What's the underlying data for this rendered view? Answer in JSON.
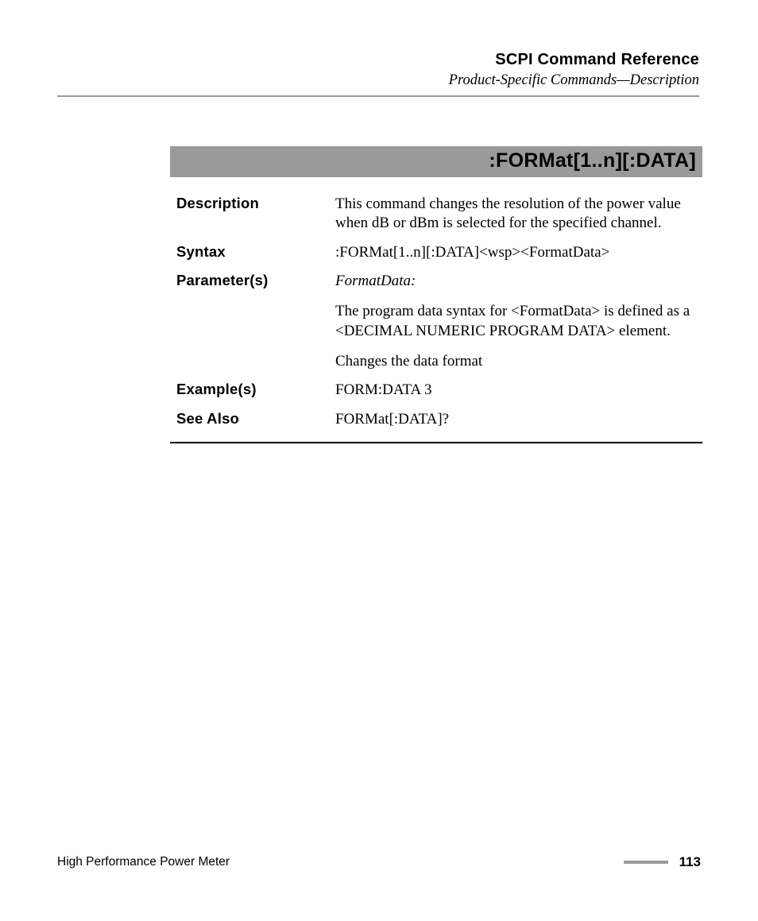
{
  "header": {
    "title": "SCPI Command Reference",
    "subtitle": "Product-Specific Commands—Description"
  },
  "command": {
    "banner": ":FORMat[1..n][:DATA]",
    "rows": [
      {
        "label": "Description",
        "paragraphs": [
          {
            "text": "This command changes the resolution of the power value when dB or dBm is selected for the specified channel.",
            "italic": false
          }
        ]
      },
      {
        "label": "Syntax",
        "paragraphs": [
          {
            "text": ":FORMat[1..n][:DATA]<wsp><FormatData>",
            "italic": false
          }
        ]
      },
      {
        "label": "Parameter(s)",
        "paragraphs": [
          {
            "text": "FormatData:",
            "italic": true
          },
          {
            "text": "The program data syntax for <FormatData> is defined as a <DECIMAL NUMERIC PROGRAM DATA> element.",
            "italic": false
          },
          {
            "text": "Changes the data format",
            "italic": false
          }
        ]
      },
      {
        "label": "Example(s)",
        "paragraphs": [
          {
            "text": "FORM:DATA 3",
            "italic": false
          }
        ]
      },
      {
        "label": "See Also",
        "paragraphs": [
          {
            "text": "FORMat[:DATA]?",
            "italic": false
          }
        ]
      }
    ]
  },
  "footer": {
    "left": "High Performance Power Meter",
    "page": "113"
  },
  "colors": {
    "banner_bg": "#9a9a9a",
    "header_rule": "#9a9a9a",
    "bottom_rule": "#000000",
    "footer_bar": "#9a9a9a",
    "background": "#ffffff",
    "text": "#000000"
  }
}
